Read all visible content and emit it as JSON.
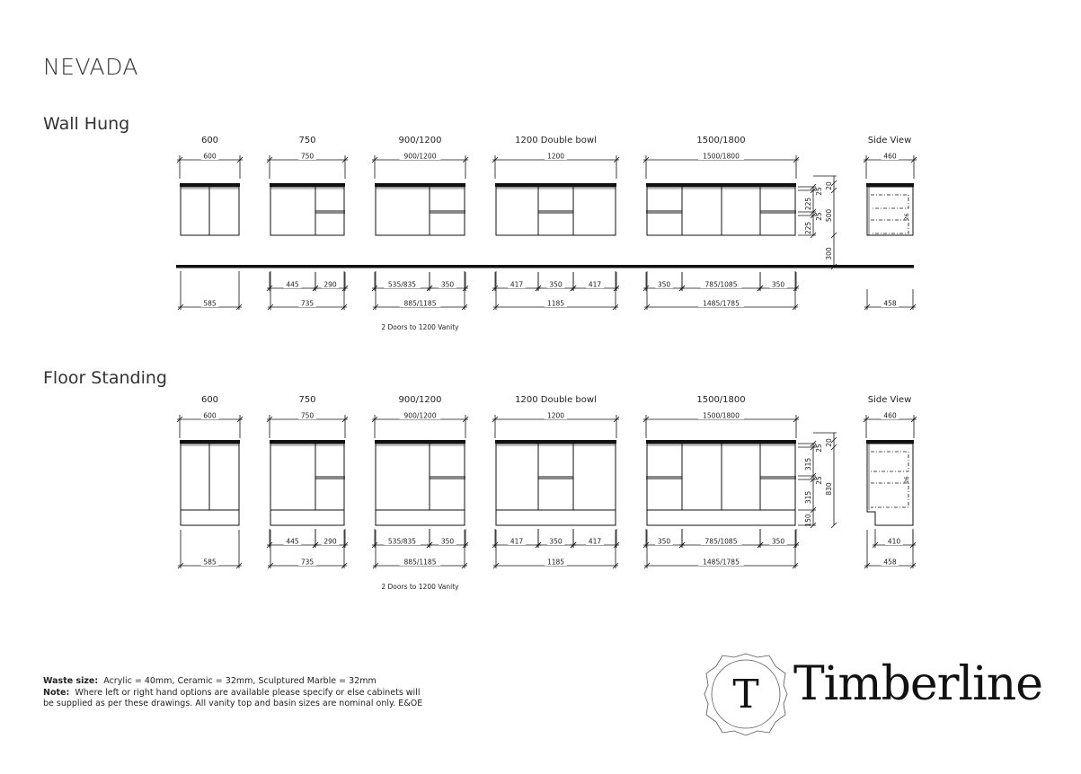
{
  "title": "NEVADA",
  "sections": [
    {
      "name": "Wall Hung",
      "type": "wall",
      "cabinets": [
        {
          "label": "600",
          "top_dim": "600",
          "inner_dims": [],
          "total_dim": "585"
        },
        {
          "label": "750",
          "top_dim": "750",
          "inner_dims": [
            "445",
            "290"
          ],
          "total_dim": "735"
        },
        {
          "label": "900/1200",
          "top_dim": "900/1200",
          "inner_dims": [
            "535/835",
            "350"
          ],
          "total_dim": "885/1185",
          "note": "2 Doors to 1200 Vanity"
        },
        {
          "label": "1200 Double bowl",
          "top_dim": "1200",
          "inner_dims": [
            "417",
            "350",
            "417"
          ],
          "total_dim": "1185"
        },
        {
          "label": "1500/1800",
          "top_dim": "1500/1800",
          "inner_dims": [
            "350",
            "785/1085",
            "350"
          ],
          "total_dim": "1485/1785"
        }
      ],
      "height_dims": {
        "inner": [
          "25",
          "225",
          "25",
          "225"
        ],
        "outer": [
          "20",
          "500",
          "300"
        ]
      },
      "side_view": {
        "label": "Side View",
        "top_dim": "460",
        "drawer_dim": "26",
        "bottom_dims": [
          "458"
        ]
      }
    },
    {
      "name": "Floor Standing",
      "type": "floor",
      "cabinets": [
        {
          "label": "600",
          "top_dim": "600",
          "inner_dims": [],
          "total_dim": "585"
        },
        {
          "label": "750",
          "top_dim": "750",
          "inner_dims": [
            "445",
            "290"
          ],
          "total_dim": "735"
        },
        {
          "label": "900/1200",
          "top_dim": "900/1200",
          "inner_dims": [
            "535/835",
            "350"
          ],
          "total_dim": "885/1185",
          "note": "2 Doors to 1200 Vanity"
        },
        {
          "label": "1200 Double bowl",
          "top_dim": "1200",
          "inner_dims": [
            "417",
            "350",
            "417"
          ],
          "total_dim": "1185"
        },
        {
          "label": "1500/1800",
          "top_dim": "1500/1800",
          "inner_dims": [
            "350",
            "785/1085",
            "350"
          ],
          "total_dim": "1485/1785"
        }
      ],
      "height_dims": {
        "inner": [
          "25",
          "315",
          "25",
          "315",
          "150"
        ],
        "outer": [
          "20",
          "830"
        ]
      },
      "side_view": {
        "label": "Side View",
        "top_dim": "460",
        "drawer_dim": "26",
        "bottom_dims": [
          "410",
          "458"
        ]
      }
    }
  ],
  "footer": {
    "waste_label": "Waste size:",
    "waste_text": "Acrylic = 40mm, Ceramic = 32mm, Sculptured Marble = 32mm",
    "note_label": "Note:",
    "note_text": "Where left or right hand options are available please specify or else cabinets will be supplied as per these drawings. All vanity top and basin sizes are nominal only.  E&OE"
  },
  "logo": {
    "monogram": "T",
    "wordmark": "Timberline"
  }
}
